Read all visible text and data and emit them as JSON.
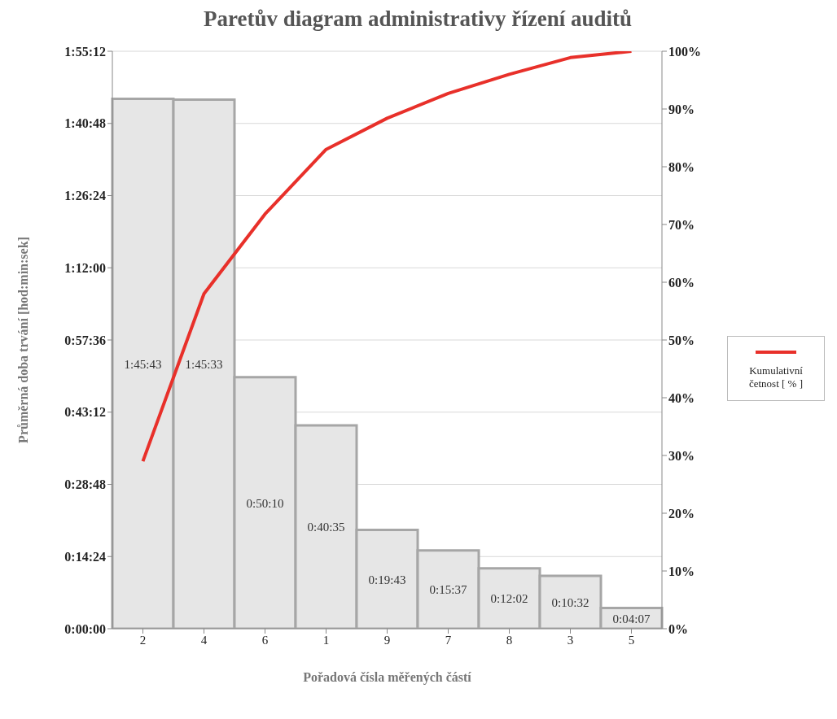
{
  "chart_data": {
    "type": "bar",
    "title": "Paretův diagram administrativy řízení auditů",
    "xlabel": "Pořadová čísla měřených částí",
    "ylabel": "Průměrná doba trvání [hod:min:sek]",
    "categories": [
      "2",
      "4",
      "6",
      "1",
      "9",
      "7",
      "8",
      "3",
      "5"
    ],
    "series": [
      {
        "color": "#e6e6e6",
        "values": [
          105.72,
          105.55,
          50.17,
          40.58,
          19.72,
          15.62,
          12.03,
          10.53,
          4.12
        ],
        "value_labels": [
          "1:45:43",
          "1:45:33",
          "0:50:10",
          "0:40:35",
          "0:19:43",
          "0:15:37",
          "0:12:02",
          "0:10:32",
          "0:04:07"
        ]
      },
      {
        "type": "line",
        "name": "Kumulativní četnost [ % ]",
        "color": "#e8302a",
        "axis": "y2",
        "values": [
          29.0,
          58.0,
          71.8,
          83.0,
          88.4,
          92.7,
          96.0,
          98.9,
          100
        ]
      }
    ],
    "ylim": [
      0,
      115.2
    ],
    "yticks": [
      {
        "value": 0,
        "label": "0:00:00"
      },
      {
        "value": 14.4,
        "label": "0:14:24"
      },
      {
        "value": 28.8,
        "label": "0:28:48"
      },
      {
        "value": 43.2,
        "label": "0:43:12"
      },
      {
        "value": 57.6,
        "label": "0:57:36"
      },
      {
        "value": 72,
        "label": "1:12:00"
      },
      {
        "value": 86.4,
        "label": "1:26:24"
      },
      {
        "value": 100.8,
        "label": "1:40:48"
      },
      {
        "value": 115.2,
        "label": "1:55:12"
      }
    ],
    "y2lim": [
      0,
      100
    ],
    "y2ticks": [
      {
        "value": 0,
        "label": "0%"
      },
      {
        "value": 10,
        "label": "10%"
      },
      {
        "value": 20,
        "label": "20%"
      },
      {
        "value": 30,
        "label": "30%"
      },
      {
        "value": 40,
        "label": "40%"
      },
      {
        "value": 50,
        "label": "50%"
      },
      {
        "value": 60,
        "label": "60%"
      },
      {
        "value": 70,
        "label": "70%"
      },
      {
        "value": 80,
        "label": "80%"
      },
      {
        "value": 90,
        "label": "90%"
      },
      {
        "value": 100,
        "label": "100%"
      }
    ],
    "grid": "y",
    "legend": "right",
    "marker": "none",
    "line_style": "solid"
  }
}
